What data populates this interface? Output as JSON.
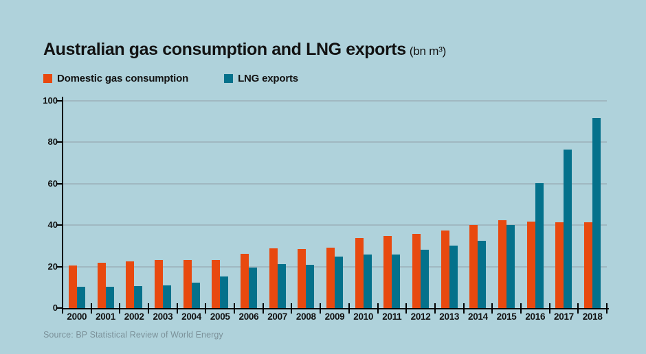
{
  "header": {
    "title": "Australian gas consumption and LNG exports",
    "unit": "(bn m³)"
  },
  "legend": {
    "items": [
      {
        "label": "Domestic gas consumption",
        "color": "#e8490f"
      },
      {
        "label": "LNG exports",
        "color": "#04718b"
      }
    ]
  },
  "source": {
    "text": "Source: BP Statistical Review of World Energy"
  },
  "colors": {
    "background": "#afd2db",
    "domestic_bar": "#e8490f",
    "lng_bar": "#04718b",
    "gridline": "#a0b8c1",
    "axis": "#000000",
    "text": "#121212",
    "source_text": "#7b9199"
  },
  "chart_data": {
    "type": "bar",
    "title": "Australian gas consumption and LNG exports (bn m³)",
    "categories": [
      "2000",
      "2001",
      "2002",
      "2003",
      "2004",
      "2005",
      "2006",
      "2007",
      "2008",
      "2009",
      "2010",
      "2011",
      "2012",
      "2013",
      "2014",
      "2015",
      "2016",
      "2017",
      "2018"
    ],
    "series": [
      {
        "name": "Domestic gas consumption",
        "color": "#e8490f",
        "values": [
          20.5,
          22.0,
          22.6,
          23.1,
          23.1,
          23.1,
          26.1,
          28.7,
          28.5,
          29.0,
          33.8,
          34.8,
          35.7,
          37.3,
          40.0,
          42.3,
          41.6,
          41.3,
          41.4
        ]
      },
      {
        "name": "LNG exports",
        "color": "#04718b",
        "values": [
          10.4,
          10.4,
          10.6,
          10.8,
          12.4,
          15.3,
          19.5,
          21.1,
          21.0,
          25.0,
          25.9,
          25.9,
          28.3,
          30.1,
          32.4,
          40.0,
          60.3,
          76.5,
          91.8
        ]
      }
    ],
    "xlabel": "",
    "ylabel": "",
    "ylim": [
      0,
      100
    ],
    "yticks": [
      0,
      20,
      40,
      60,
      80,
      100
    ],
    "grid": true,
    "legend_position": "top-left"
  }
}
